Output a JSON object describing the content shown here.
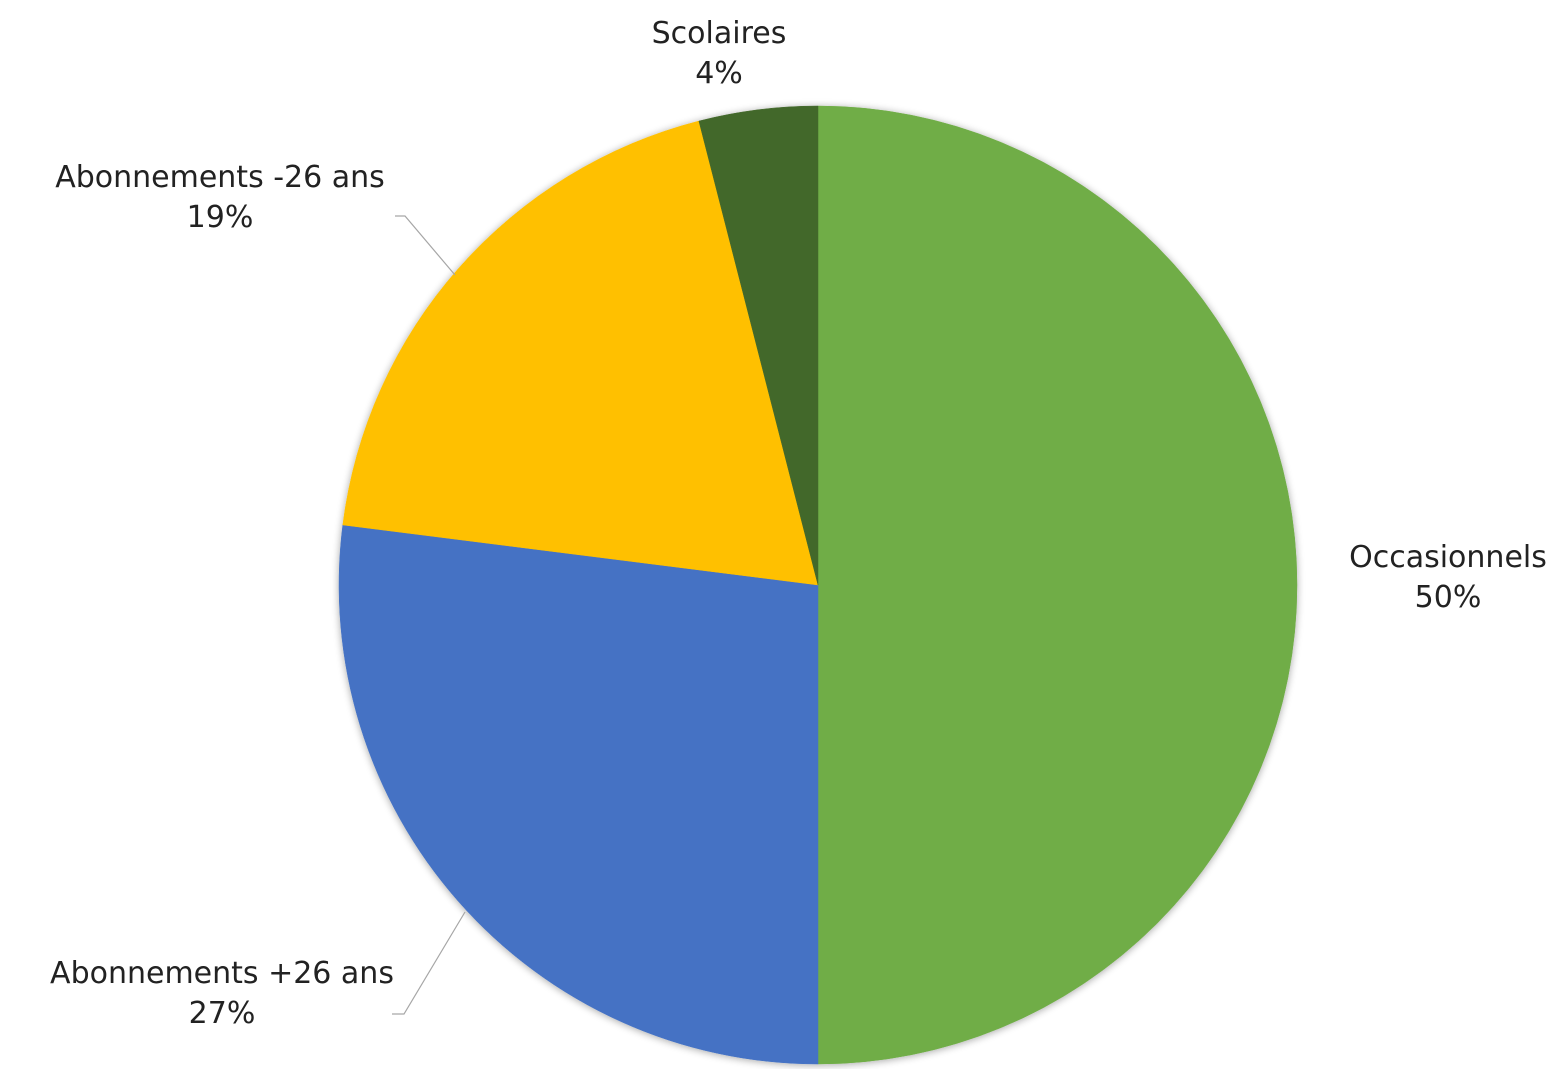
{
  "chart_data": {
    "type": "pie",
    "title": "",
    "slices": [
      {
        "label": "Occasionnels",
        "value": 50,
        "display": "50%",
        "color": "#70AD47"
      },
      {
        "label": "Abonnements +26 ans",
        "value": 27,
        "display": "27%",
        "color": "#4472C4"
      },
      {
        "label": "Abonnements -26 ans",
        "value": 19,
        "display": "19%",
        "color": "#FFC000"
      },
      {
        "label": "Scolaires",
        "value": 4,
        "display": "4%",
        "color": "#43682B"
      }
    ],
    "start_angle_deg": 0,
    "direction": "clockwise",
    "legend": "none",
    "leader_line_color": "#a6a6a6"
  }
}
